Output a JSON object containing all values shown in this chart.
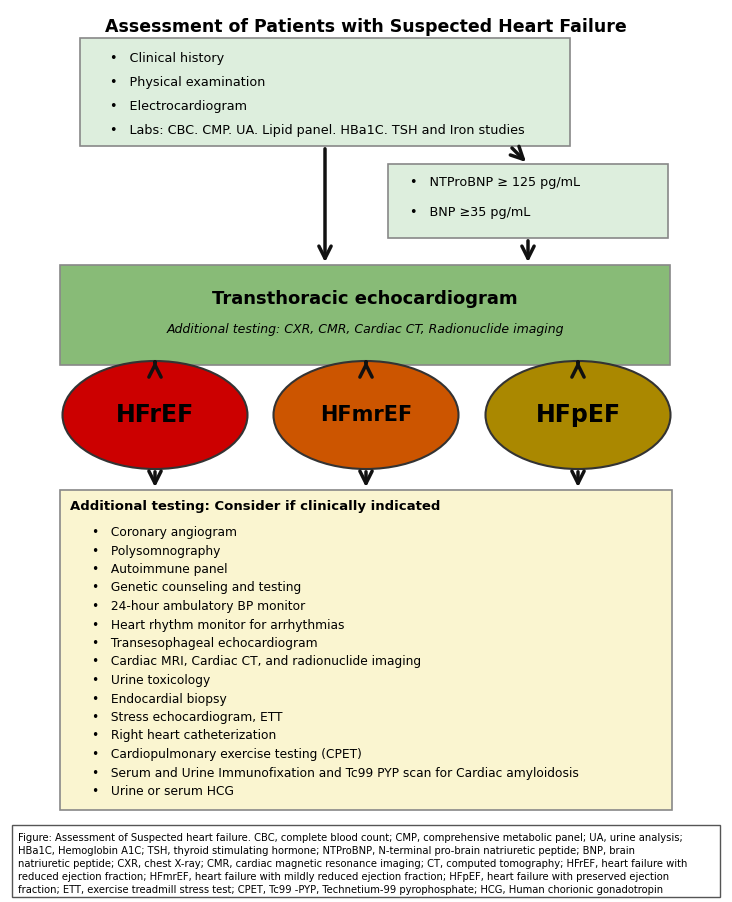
{
  "title": "Assessment of Patients with Suspected Heart Failure",
  "box1_color": "#ddeedd",
  "box1_border": "#888888",
  "box1_items": [
    "Clinical history",
    "Physical examination",
    "Electrocardiogram",
    "Labs: CBC. CMP. UA. Lipid panel. HBa1C. TSH and Iron studies"
  ],
  "box2_color": "#ddeedd",
  "box2_border": "#888888",
  "box2_items": [
    "NTProBNP ≥ 125 pg/mL",
    "BNP ≥35 pg/mL"
  ],
  "box3_color": "#88bb77",
  "box3_border": "#888888",
  "box3_title": "Transthoracic echocardiogram",
  "box3_subtitle": "Additional testing: CXR, CMR, Cardiac CT, Radionuclide imaging",
  "ellipse1_color": "#cc0000",
  "ellipse1_label": "HFrEF",
  "ellipse2_color": "#cc5500",
  "ellipse2_label": "HFmrEF",
  "ellipse3_color": "#aa8800",
  "ellipse3_label": "HFpEF",
  "box4_color": "#faf5d0",
  "box4_border": "#888888",
  "box4_title": "Additional testing: Consider if clinically indicated",
  "box4_items": [
    "Coronary angiogram",
    "Polysomnography",
    "Autoimmune panel",
    "Genetic counseling and testing",
    "24-hour ambulatory BP monitor",
    "Heart rhythm monitor for arrhythmias",
    "Transesophageal echocardiogram",
    "Cardiac MRI, Cardiac CT, and radionuclide imaging",
    "Urine toxicology",
    "Endocardial biopsy",
    "Stress echocardiogram, ETT",
    "Right heart catheterization",
    "Cardiopulmonary exercise testing (CPET)",
    "Serum and Urine Immunofixation and Tc99 PYP scan for Cardiac amyloidosis",
    "Urine or serum HCG"
  ],
  "caption_lines": [
    "Figure: Assessment of Suspected heart failure. CBC, complete blood count; CMP, comprehensive metabolic panel; UA, urine analysis;",
    "HBa1C, Hemoglobin A1C; TSH, thyroid stimulating hormone; NTProBNP, N-terminal pro-brain natriuretic peptide; BNP, brain",
    "natriuretic peptide; CXR, chest X-ray; CMR, cardiac magnetic resonance imaging; CT, computed tomography; HFrEF, heart failure with",
    "reduced ejection fraction; HFmrEF, heart failure with mildly reduced ejection fraction; HFpEF, heart failure with preserved ejection",
    "fraction; ETT, exercise treadmill stress test; CPET, Tc99 -PYP, Technetium-99 pyrophosphate; HCG, Human chorionic gonadotropin"
  ],
  "background": "#ffffff",
  "arrow_color": "#111111",
  "arrow_lw": 2.5
}
